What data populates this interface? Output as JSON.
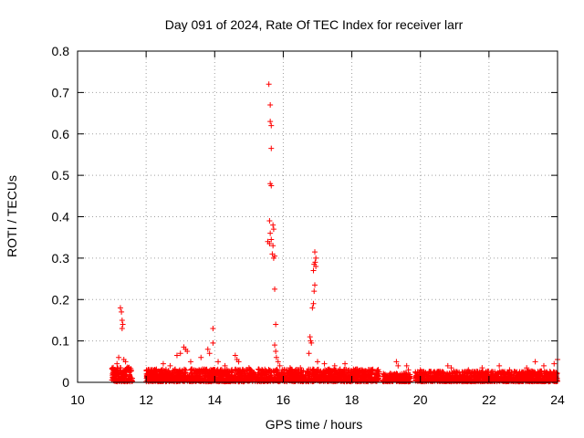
{
  "chart_data": {
    "type": "scatter",
    "title": "Day 091 of 2024, Rate Of TEC Index for receiver larr",
    "xlabel": "GPS time / hours",
    "ylabel": "ROTI / TECUs",
    "xlim": [
      10,
      24
    ],
    "ylim": [
      0,
      0.8
    ],
    "xticks": [
      10,
      12,
      14,
      16,
      18,
      20,
      22,
      24
    ],
    "yticks": [
      0,
      0.1,
      0.2,
      0.3,
      0.4,
      0.5,
      0.6,
      0.7,
      0.8
    ],
    "xtick_labels": [
      "10",
      "12",
      "14",
      "16",
      "18",
      "20",
      "22",
      "24"
    ],
    "ytick_labels": [
      "0",
      "0.1",
      "0.2",
      "0.3",
      "0.4",
      "0.5",
      "0.6",
      "0.7",
      "0.8"
    ],
    "grid": true,
    "marker": "+",
    "color": "#ff0000",
    "baseline_bands": [
      {
        "x": [
          11.0,
          11.6
        ],
        "ymax": 0.035
      },
      {
        "x": [
          12.0,
          18.8
        ],
        "ymax": 0.03
      },
      {
        "x": [
          18.9,
          19.7
        ],
        "ymax": 0.02
      },
      {
        "x": [
          19.85,
          24.0
        ],
        "ymax": 0.025
      }
    ],
    "points": [
      [
        11.25,
        0.18
      ],
      [
        11.28,
        0.17
      ],
      [
        11.3,
        0.15
      ],
      [
        11.32,
        0.14
      ],
      [
        11.3,
        0.13
      ],
      [
        11.2,
        0.06
      ],
      [
        11.35,
        0.055
      ],
      [
        11.4,
        0.05
      ],
      [
        11.15,
        0.045
      ],
      [
        12.5,
        0.045
      ],
      [
        12.7,
        0.04
      ],
      [
        12.9,
        0.065
      ],
      [
        13.0,
        0.07
      ],
      [
        13.1,
        0.085
      ],
      [
        13.15,
        0.08
      ],
      [
        13.2,
        0.075
      ],
      [
        13.3,
        0.05
      ],
      [
        13.6,
        0.06
      ],
      [
        13.8,
        0.08
      ],
      [
        13.85,
        0.07
      ],
      [
        13.95,
        0.13
      ],
      [
        13.95,
        0.095
      ],
      [
        14.1,
        0.05
      ],
      [
        14.3,
        0.04
      ],
      [
        14.6,
        0.065
      ],
      [
        14.65,
        0.055
      ],
      [
        14.7,
        0.05
      ],
      [
        15.0,
        0.035
      ],
      [
        15.3,
        0.03
      ],
      [
        15.58,
        0.72
      ],
      [
        15.62,
        0.67
      ],
      [
        15.62,
        0.63
      ],
      [
        15.65,
        0.62
      ],
      [
        15.65,
        0.565
      ],
      [
        15.62,
        0.48
      ],
      [
        15.65,
        0.475
      ],
      [
        15.6,
        0.39
      ],
      [
        15.7,
        0.38
      ],
      [
        15.72,
        0.37
      ],
      [
        15.62,
        0.36
      ],
      [
        15.55,
        0.34
      ],
      [
        15.6,
        0.335
      ],
      [
        15.65,
        0.345
      ],
      [
        15.7,
        0.33
      ],
      [
        15.68,
        0.31
      ],
      [
        15.72,
        0.3
      ],
      [
        15.75,
        0.305
      ],
      [
        15.75,
        0.225
      ],
      [
        15.78,
        0.14
      ],
      [
        15.75,
        0.09
      ],
      [
        15.78,
        0.075
      ],
      [
        15.8,
        0.06
      ],
      [
        15.85,
        0.05
      ],
      [
        15.9,
        0.04
      ],
      [
        16.2,
        0.035
      ],
      [
        16.5,
        0.035
      ],
      [
        16.78,
        0.11
      ],
      [
        16.8,
        0.1
      ],
      [
        16.82,
        0.095
      ],
      [
        16.75,
        0.07
      ],
      [
        16.85,
        0.18
      ],
      [
        16.88,
        0.19
      ],
      [
        16.9,
        0.22
      ],
      [
        16.92,
        0.235
      ],
      [
        16.88,
        0.27
      ],
      [
        16.9,
        0.285
      ],
      [
        16.93,
        0.29
      ],
      [
        16.95,
        0.3
      ],
      [
        16.92,
        0.315
      ],
      [
        16.95,
        0.28
      ],
      [
        17.0,
        0.05
      ],
      [
        17.2,
        0.045
      ],
      [
        17.5,
        0.04
      ],
      [
        17.8,
        0.045
      ],
      [
        18.1,
        0.03
      ],
      [
        18.4,
        0.025
      ],
      [
        19.3,
        0.05
      ],
      [
        19.35,
        0.04
      ],
      [
        19.6,
        0.04
      ],
      [
        19.65,
        0.03
      ],
      [
        20.0,
        0.03
      ],
      [
        20.8,
        0.04
      ],
      [
        20.9,
        0.035
      ],
      [
        21.4,
        0.03
      ],
      [
        21.8,
        0.035
      ],
      [
        22.3,
        0.04
      ],
      [
        22.6,
        0.03
      ],
      [
        23.1,
        0.035
      ],
      [
        23.35,
        0.05
      ],
      [
        23.6,
        0.04
      ],
      [
        23.9,
        0.045
      ],
      [
        24.0,
        0.055
      ]
    ]
  }
}
